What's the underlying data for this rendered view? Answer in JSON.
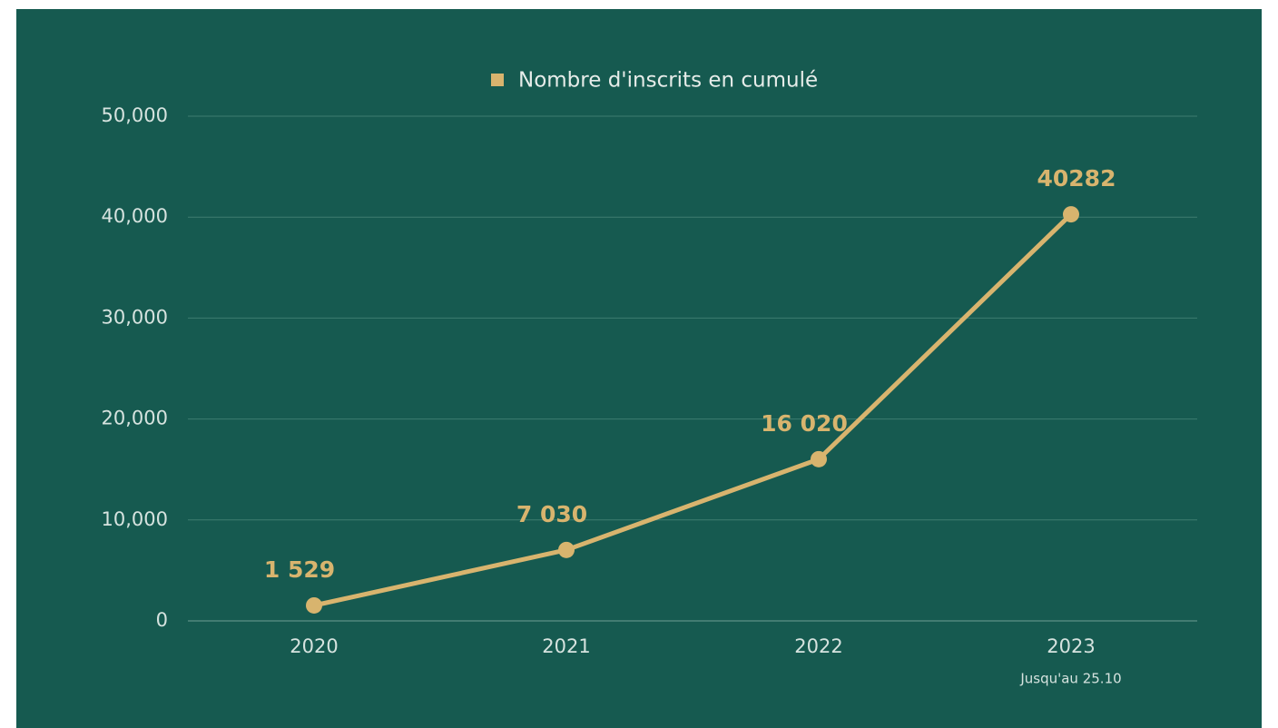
{
  "chart_data": {
    "type": "line",
    "categories": [
      "2020",
      "2021",
      "2022",
      "2023"
    ],
    "category_notes": [
      null,
      null,
      null,
      "Jusqu'au 25.10"
    ],
    "series": [
      {
        "name": "Nombre d'inscrits en cumulé",
        "color": "#d8b46e",
        "values": [
          1529,
          7030,
          16020,
          40282
        ],
        "value_labels": [
          "1 529",
          "7 030",
          "16 020",
          "40282"
        ]
      }
    ],
    "ylim": [
      0,
      50000
    ],
    "yticks": [
      0,
      {
        "value": 10000,
        "label": "10,000"
      },
      {
        "value": 20000,
        "label": "20,000"
      },
      {
        "value": 30000,
        "label": "30,000"
      },
      {
        "value": 40000,
        "label": "40,000"
      },
      {
        "value": 50000,
        "label": "50,000"
      }
    ],
    "grid": true,
    "legend": "top"
  }
}
